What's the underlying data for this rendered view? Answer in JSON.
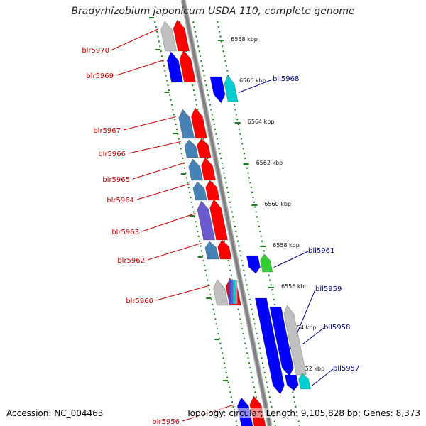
{
  "title": "Bradyrhizobium japonicum USDA 110, complete genome",
  "footer": {
    "accession": "Accession: NC_004463",
    "topology": "Topology: circular; Length: 9,105,828 bp; Genes: 8,373"
  },
  "colors": {
    "forward_label": "#cc0000",
    "reverse_label": "#00008b",
    "backbone": "#808080",
    "strand_dots": "#1a7f1a",
    "red": "#ff0000",
    "blue": "#0000ff",
    "steelblue": "#4682b4",
    "slateblue": "#6a5acd",
    "cyan": "#00ced1",
    "green": "#32cd32",
    "gray": "#c0c0c0"
  },
  "scale_ticks": [
    "6568 kbp",
    "6566 kbp",
    "6564 kbp",
    "6562 kbp",
    "6560 kbp",
    "6558 kbp",
    "6556 kbp",
    "6554 kbp",
    "6552 kbp"
  ],
  "forward_genes": [
    {
      "name": "blr5970",
      "color": "gray"
    },
    {
      "name": "blr5969",
      "color": "blue"
    },
    {
      "name": "blr5967",
      "color": "steelblue"
    },
    {
      "name": "blr5966",
      "color": "steelblue"
    },
    {
      "name": "blr5965",
      "color": "steelblue"
    },
    {
      "name": "blr5964",
      "color": "steelblue"
    },
    {
      "name": "blr5963",
      "color": "slateblue"
    },
    {
      "name": "blr5962",
      "color": "steelblue"
    },
    {
      "name": "blr5960",
      "color": "gray"
    },
    {
      "name": "blr5956",
      "color": "blue"
    }
  ],
  "reverse_genes": [
    {
      "name": "bll5968",
      "color": "cyan"
    },
    {
      "name": "bll5961",
      "color": "green"
    },
    {
      "name": "bll5959",
      "color": "blue"
    },
    {
      "name": "bll5958",
      "color": "gray"
    },
    {
      "name": "bll5957",
      "color": "cyan"
    }
  ]
}
